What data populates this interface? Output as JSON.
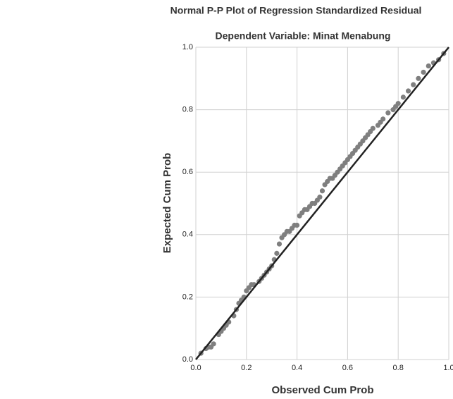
{
  "chart_data": {
    "type": "scatter",
    "title": "Normal P-P Plot of Regression Standardized Residual",
    "subtitle": "Dependent Variable: Minat Menabung",
    "x_label": "Observed Cum Prob",
    "y_label": "Expected Cum Prob",
    "xlim": [
      0,
      1
    ],
    "ylim": [
      0,
      1
    ],
    "xticks": [
      {
        "value": 0,
        "label": "0.0"
      },
      0.2,
      0.4,
      0.6,
      0.8,
      {
        "value": 1,
        "label": "1.0"
      }
    ],
    "yticks": [
      {
        "value": 0,
        "label": "0.0"
      },
      0.2,
      0.4,
      0.6,
      0.8,
      {
        "value": 1,
        "label": "1.0"
      }
    ],
    "grid": true,
    "series": [
      {
        "color": "#7f7f7f",
        "x": [
          0.02,
          0.04,
          0.05,
          0.06,
          0.07,
          0.09,
          0.1,
          0.11,
          0.12,
          0.13,
          0.15,
          0.16,
          0.17,
          0.18,
          0.19,
          0.2,
          0.21,
          0.22,
          0.23,
          0.25,
          0.26,
          0.27,
          0.28,
          0.29,
          0.3,
          0.31,
          0.32,
          0.33,
          0.34,
          0.35,
          0.36,
          0.37,
          0.38,
          0.39,
          0.4,
          0.41,
          0.42,
          0.43,
          0.44,
          0.45,
          0.46,
          0.47,
          0.48,
          0.49,
          0.5,
          0.51,
          0.52,
          0.53,
          0.54,
          0.55,
          0.56,
          0.57,
          0.58,
          0.59,
          0.6,
          0.61,
          0.62,
          0.63,
          0.64,
          0.65,
          0.66,
          0.67,
          0.68,
          0.69,
          0.7,
          0.72,
          0.73,
          0.74,
          0.76,
          0.78,
          0.79,
          0.8,
          0.82,
          0.84,
          0.86,
          0.88,
          0.9,
          0.92,
          0.94,
          0.96,
          0.98
        ],
        "values": [
          0.02,
          0.035,
          0.04,
          0.04,
          0.05,
          0.08,
          0.09,
          0.1,
          0.11,
          0.12,
          0.14,
          0.16,
          0.18,
          0.19,
          0.2,
          0.22,
          0.23,
          0.24,
          0.24,
          0.25,
          0.26,
          0.27,
          0.28,
          0.29,
          0.3,
          0.32,
          0.34,
          0.37,
          0.39,
          0.4,
          0.41,
          0.41,
          0.42,
          0.43,
          0.43,
          0.46,
          0.47,
          0.48,
          0.48,
          0.49,
          0.5,
          0.5,
          0.51,
          0.52,
          0.54,
          0.56,
          0.57,
          0.58,
          0.58,
          0.59,
          0.6,
          0.61,
          0.62,
          0.63,
          0.64,
          0.65,
          0.66,
          0.67,
          0.68,
          0.69,
          0.7,
          0.71,
          0.72,
          0.73,
          0.74,
          0.75,
          0.76,
          0.77,
          0.79,
          0.8,
          0.81,
          0.82,
          0.84,
          0.86,
          0.88,
          0.9,
          0.92,
          0.94,
          0.95,
          0.96,
          0.98
        ]
      }
    ],
    "reference_line": {
      "color": "#222222",
      "x": [
        0,
        1
      ],
      "values": [
        0,
        1
      ]
    }
  }
}
